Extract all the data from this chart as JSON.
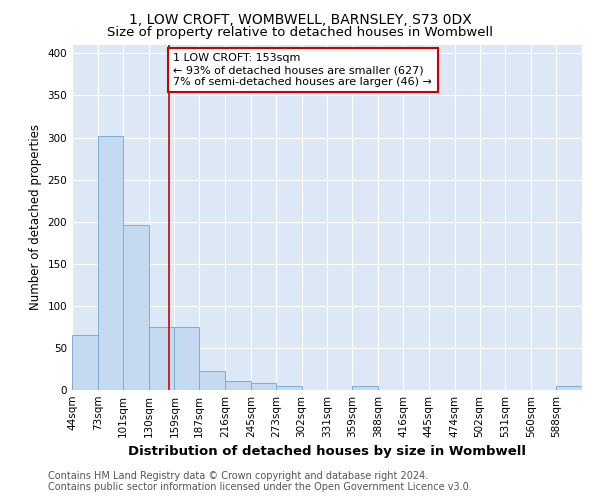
{
  "title": "1, LOW CROFT, WOMBWELL, BARNSLEY, S73 0DX",
  "subtitle": "Size of property relative to detached houses in Wombwell",
  "xlabel": "Distribution of detached houses by size in Wombwell",
  "ylabel": "Number of detached properties",
  "bar_edges": [
    44,
    73,
    101,
    130,
    159,
    187,
    216,
    245,
    273,
    302,
    331,
    359,
    388,
    416,
    445,
    474,
    502,
    531,
    560,
    588,
    617
  ],
  "bar_heights": [
    65,
    302,
    196,
    75,
    75,
    22,
    11,
    8,
    5,
    0,
    0,
    5,
    0,
    0,
    0,
    0,
    0,
    0,
    0,
    5
  ],
  "bar_color": "#c5d9f0",
  "bar_edge_color": "#7bafd4",
  "property_line_x": 153,
  "property_line_color": "#cc0000",
  "annotation_line1": "1 LOW CROFT: 153sqm",
  "annotation_line2": "← 93% of detached houses are smaller (627)",
  "annotation_line3": "7% of semi-detached houses are larger (46) →",
  "annotation_box_color": "#ffffff",
  "annotation_box_edge": "#cc0000",
  "ylim": [
    0,
    410
  ],
  "yticks": [
    0,
    50,
    100,
    150,
    200,
    250,
    300,
    350,
    400
  ],
  "footnote": "Contains HM Land Registry data © Crown copyright and database right 2024.\nContains public sector information licensed under the Open Government Licence v3.0.",
  "background_color": "#dce8f5",
  "grid_color": "#ffffff",
  "fig_background": "#ffffff",
  "title_fontsize": 10,
  "subtitle_fontsize": 9.5,
  "xlabel_fontsize": 9.5,
  "ylabel_fontsize": 8.5,
  "tick_fontsize": 7.5,
  "annotation_fontsize": 8,
  "footnote_fontsize": 7
}
